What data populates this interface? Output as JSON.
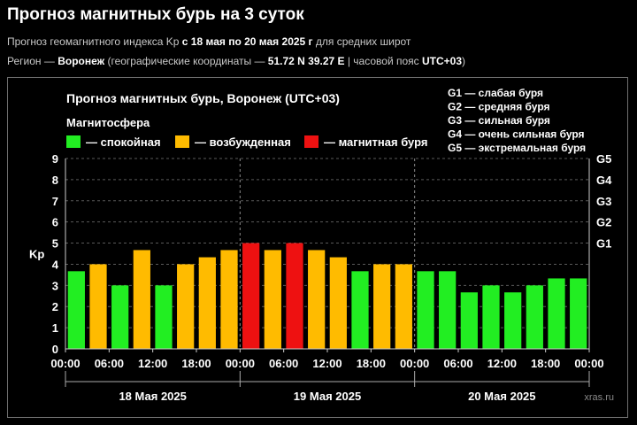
{
  "header": {
    "title": "Прогноз магнитных бурь на 3 суток",
    "line1_pre": "Прогноз геомагнитного индекса Kp ",
    "line1_bold": "с 18 мая по 20 мая 2025 г",
    "line1_post": " для средних широт",
    "line2_pre": "Регион — ",
    "line2_region": "Воронеж",
    "line2_mid": " (географические координаты — ",
    "line2_coords": "51.72 N 39.27 E",
    "line2_tz_pre": " | часовой пояс ",
    "line2_tz": "UTC+03",
    "line2_end": ")"
  },
  "chart_data": {
    "type": "bar",
    "title": "Прогноз магнитных бурь, Воронеж (UTC+03)",
    "ylabel": "Kp",
    "ylim": [
      0,
      9
    ],
    "yticks": [
      "0",
      "1",
      "2",
      "3",
      "4",
      "5",
      "6",
      "7",
      "8",
      "9"
    ],
    "x_tick_labels": [
      "00:00",
      "06:00",
      "12:00",
      "18:00",
      "00:00",
      "06:00",
      "12:00",
      "18:00",
      "00:00",
      "06:00",
      "12:00",
      "18:00",
      "00:00"
    ],
    "day_labels": [
      "18 Мая 2025",
      "19 Мая 2025",
      "20 Мая 2025"
    ],
    "legend_title": "Магнитосфера",
    "legend": [
      {
        "label": "— спокойная",
        "color": "#22ee22"
      },
      {
        "label": "— возбужденная",
        "color": "#ffbb00"
      },
      {
        "label": "— магнитная буря",
        "color": "#ee1111"
      }
    ],
    "g_scale_right": [
      "G1",
      "G2",
      "G3",
      "G4",
      "G5"
    ],
    "g_legend": [
      "G1 — слабая буря",
      "G2 — средняя буря",
      "G3 — сильная буря",
      "G4 — очень сильная буря",
      "G5 — экстремальная буря"
    ],
    "values": [
      3.67,
      4.0,
      3.0,
      4.67,
      3.0,
      4.0,
      4.33,
      4.67,
      5.0,
      4.67,
      5.0,
      4.67,
      4.33,
      3.67,
      4.0,
      4.0,
      3.67,
      3.67,
      2.67,
      3.0,
      2.67,
      3.0,
      3.33,
      3.33
    ],
    "colors": {
      "quiet": "#22ee22",
      "active": "#ffbb00",
      "storm": "#ee1111",
      "grid": "#5a5a5a",
      "axis": "#cccccc"
    }
  },
  "watermark": "xras.ru"
}
